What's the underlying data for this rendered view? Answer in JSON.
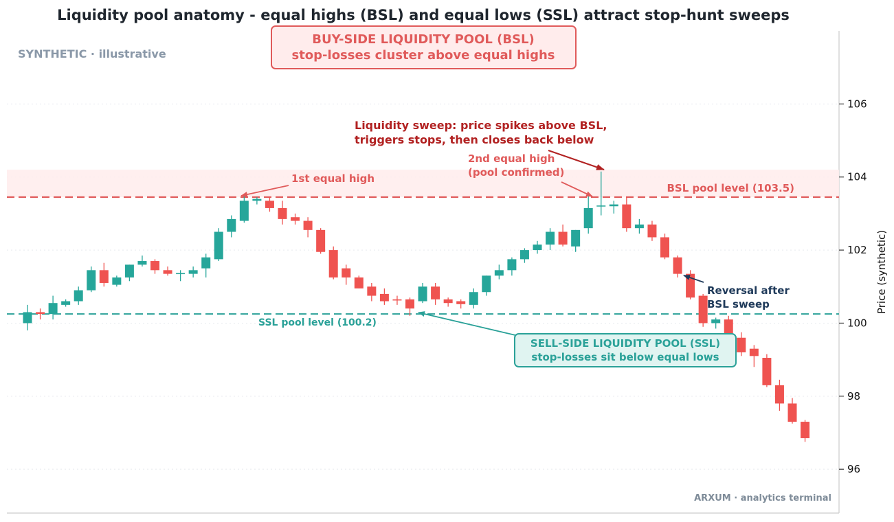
{
  "chart_data": {
    "type": "candlestick",
    "title": "Liquidity pool anatomy - equal highs (BSL) and equal lows (SSL) attract stop-hunt sweeps",
    "ylabel": "Price (synthetic)",
    "xlabel": "",
    "ylim": [
      94.8,
      108.0
    ],
    "yticks": [
      96,
      98,
      100,
      102,
      104,
      106
    ],
    "grid": true,
    "colors": {
      "up": "#26a69a",
      "down": "#ef5350",
      "bsl": "#e05a5a",
      "ssl": "#2aa198",
      "navy": "#1f3a5a",
      "darkred": "#b22222"
    },
    "candles": [
      {
        "o": 100.0,
        "h": 100.5,
        "l": 99.8,
        "c": 100.3
      },
      {
        "o": 100.3,
        "h": 100.4,
        "l": 100.1,
        "c": 100.25
      },
      {
        "o": 100.25,
        "h": 100.75,
        "l": 100.1,
        "c": 100.55
      },
      {
        "o": 100.5,
        "h": 100.65,
        "l": 100.45,
        "c": 100.6
      },
      {
        "o": 100.6,
        "h": 101.0,
        "l": 100.5,
        "c": 100.9
      },
      {
        "o": 100.9,
        "h": 101.55,
        "l": 100.85,
        "c": 101.45
      },
      {
        "o": 101.45,
        "h": 101.65,
        "l": 101.0,
        "c": 101.1
      },
      {
        "o": 101.05,
        "h": 101.3,
        "l": 101.0,
        "c": 101.25
      },
      {
        "o": 101.25,
        "h": 101.6,
        "l": 101.15,
        "c": 101.6
      },
      {
        "o": 101.6,
        "h": 101.85,
        "l": 101.55,
        "c": 101.7
      },
      {
        "o": 101.7,
        "h": 101.75,
        "l": 101.35,
        "c": 101.45
      },
      {
        "o": 101.45,
        "h": 101.55,
        "l": 101.3,
        "c": 101.35
      },
      {
        "o": 101.35,
        "h": 101.45,
        "l": 101.15,
        "c": 101.37
      },
      {
        "o": 101.35,
        "h": 101.55,
        "l": 101.25,
        "c": 101.45
      },
      {
        "o": 101.5,
        "h": 101.9,
        "l": 101.25,
        "c": 101.8
      },
      {
        "o": 101.75,
        "h": 102.6,
        "l": 101.7,
        "c": 102.5
      },
      {
        "o": 102.5,
        "h": 102.95,
        "l": 102.35,
        "c": 102.85
      },
      {
        "o": 102.8,
        "h": 103.5,
        "l": 102.75,
        "c": 103.35
      },
      {
        "o": 103.35,
        "h": 103.45,
        "l": 103.25,
        "c": 103.4
      },
      {
        "o": 103.35,
        "h": 103.45,
        "l": 103.05,
        "c": 103.15
      },
      {
        "o": 103.15,
        "h": 103.35,
        "l": 102.7,
        "c": 102.85
      },
      {
        "o": 102.9,
        "h": 103.0,
        "l": 102.7,
        "c": 102.8
      },
      {
        "o": 102.8,
        "h": 102.9,
        "l": 102.35,
        "c": 102.55
      },
      {
        "o": 102.55,
        "h": 102.6,
        "l": 101.9,
        "c": 101.95
      },
      {
        "o": 102.0,
        "h": 102.1,
        "l": 101.2,
        "c": 101.25
      },
      {
        "o": 101.5,
        "h": 101.6,
        "l": 101.05,
        "c": 101.25
      },
      {
        "o": 101.25,
        "h": 101.3,
        "l": 100.95,
        "c": 100.95
      },
      {
        "o": 101.0,
        "h": 101.1,
        "l": 100.6,
        "c": 100.75
      },
      {
        "o": 100.8,
        "h": 100.95,
        "l": 100.5,
        "c": 100.6
      },
      {
        "o": 100.65,
        "h": 100.75,
        "l": 100.5,
        "c": 100.62
      },
      {
        "o": 100.65,
        "h": 100.7,
        "l": 100.2,
        "c": 100.4
      },
      {
        "o": 100.6,
        "h": 101.1,
        "l": 100.55,
        "c": 101.0
      },
      {
        "o": 101.0,
        "h": 101.1,
        "l": 100.5,
        "c": 100.65
      },
      {
        "o": 100.65,
        "h": 100.7,
        "l": 100.45,
        "c": 100.55
      },
      {
        "o": 100.6,
        "h": 100.65,
        "l": 100.4,
        "c": 100.52
      },
      {
        "o": 100.5,
        "h": 100.95,
        "l": 100.4,
        "c": 100.85
      },
      {
        "o": 100.85,
        "h": 101.3,
        "l": 100.75,
        "c": 101.3
      },
      {
        "o": 101.3,
        "h": 101.6,
        "l": 101.2,
        "c": 101.45
      },
      {
        "o": 101.45,
        "h": 101.8,
        "l": 101.3,
        "c": 101.75
      },
      {
        "o": 101.75,
        "h": 102.05,
        "l": 101.65,
        "c": 102.0
      },
      {
        "o": 102.0,
        "h": 102.25,
        "l": 101.9,
        "c": 102.15
      },
      {
        "o": 102.15,
        "h": 102.6,
        "l": 102.0,
        "c": 102.5
      },
      {
        "o": 102.5,
        "h": 102.7,
        "l": 102.1,
        "c": 102.15
      },
      {
        "o": 102.1,
        "h": 102.55,
        "l": 101.95,
        "c": 102.55
      },
      {
        "o": 102.6,
        "h": 103.5,
        "l": 102.45,
        "c": 103.15
      },
      {
        "o": 103.2,
        "h": 104.15,
        "l": 102.95,
        "c": 103.22
      },
      {
        "o": 103.2,
        "h": 103.35,
        "l": 103.0,
        "c": 103.25
      },
      {
        "o": 103.25,
        "h": 103.45,
        "l": 102.5,
        "c": 102.6
      },
      {
        "o": 102.6,
        "h": 102.85,
        "l": 102.45,
        "c": 102.7
      },
      {
        "o": 102.7,
        "h": 102.8,
        "l": 102.25,
        "c": 102.35
      },
      {
        "o": 102.35,
        "h": 102.45,
        "l": 101.75,
        "c": 101.8
      },
      {
        "o": 101.8,
        "h": 101.85,
        "l": 101.25,
        "c": 101.35
      },
      {
        "o": 101.35,
        "h": 101.45,
        "l": 100.65,
        "c": 100.7
      },
      {
        "o": 100.75,
        "h": 100.8,
        "l": 99.9,
        "c": 100.0
      },
      {
        "o": 100.0,
        "h": 100.15,
        "l": 99.85,
        "c": 100.1
      },
      {
        "o": 100.1,
        "h": 100.2,
        "l": 99.5,
        "c": 99.65
      },
      {
        "o": 99.6,
        "h": 99.75,
        "l": 99.1,
        "c": 99.2
      },
      {
        "o": 99.3,
        "h": 99.4,
        "l": 98.8,
        "c": 99.1
      },
      {
        "o": 99.05,
        "h": 99.15,
        "l": 98.25,
        "c": 98.3
      },
      {
        "o": 98.3,
        "h": 98.45,
        "l": 97.6,
        "c": 97.8
      },
      {
        "o": 97.8,
        "h": 97.95,
        "l": 97.25,
        "c": 97.3
      },
      {
        "o": 97.3,
        "h": 97.35,
        "l": 96.75,
        "c": 96.85
      }
    ],
    "levels": {
      "bsl": {
        "value": 103.45,
        "label": "BSL pool level (103.5)",
        "zone": [
          103.45,
          104.2
        ]
      },
      "ssl": {
        "value": 100.25,
        "label": "SSL pool level (100.2)"
      }
    }
  },
  "texts": {
    "watermark": "SYNTHETIC · illustrative",
    "brand": "ARXUM · analytics terminal",
    "bsl_box_line1": "BUY-SIDE LIQUIDITY POOL (BSL)",
    "bsl_box_line2": "stop-losses cluster above equal highs",
    "ssl_box_line1": "SELL-SIDE LIQUIDITY POOL (SSL)",
    "ssl_box_line2": "stop-losses sit below equal lows",
    "first_high": "1st equal high",
    "second_high_line1": "2nd equal high",
    "second_high_line2": "(pool confirmed)",
    "sweep_line1": "Liquidity sweep: price spikes above BSL,",
    "sweep_line2": "triggers stops, then closes back below",
    "reversal_line1": "Reversal after",
    "reversal_line2": "BSL sweep"
  }
}
